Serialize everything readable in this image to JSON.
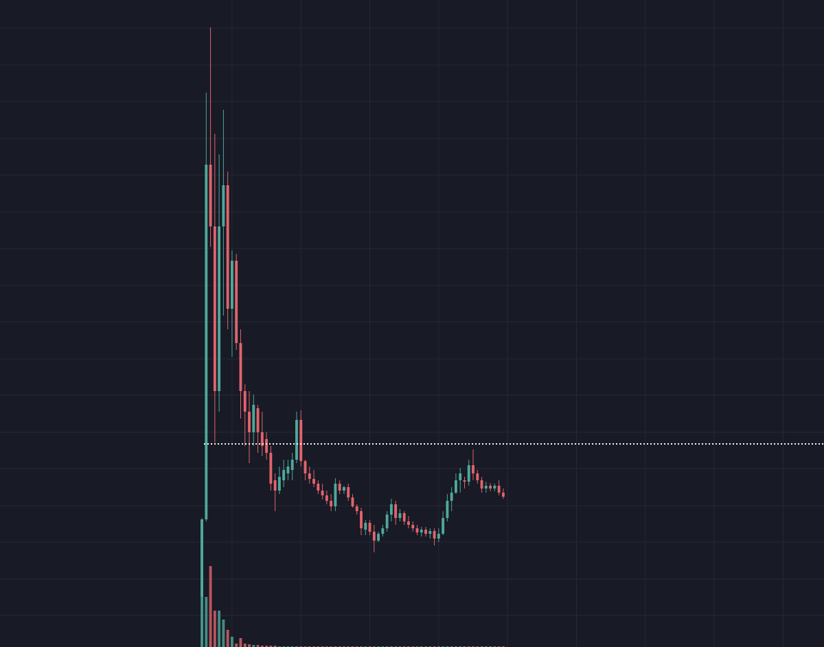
{
  "chart_data": {
    "type": "candlestick",
    "up_color": "#4fa89b",
    "down_color": "#e0646c",
    "grid_color": "#262935",
    "grid": true,
    "xlim": [
      -53.9,
      137.5
    ],
    "xticks": [
      0,
      16,
      32,
      48,
      64,
      80,
      96,
      112,
      128
    ],
    "ylim": [
      0,
      943
    ],
    "yticks": [
      46,
      99,
      153,
      206,
      260,
      313,
      367,
      420,
      474,
      527,
      581,
      634,
      688,
      741,
      795,
      848,
      902
    ],
    "vlim": [
      0,
      943
    ],
    "price_line": 296,
    "price_line_color": "#ffffff",
    "x": [
      -7,
      -6,
      -5,
      -4,
      -3,
      -2,
      -1,
      0,
      1,
      2,
      3,
      4,
      5,
      6,
      7,
      8,
      9,
      10,
      11,
      12,
      13,
      14,
      15,
      16,
      17,
      18,
      19,
      20,
      21,
      22,
      23,
      24,
      25,
      26,
      27,
      28,
      29,
      30,
      31,
      32,
      33,
      34,
      35,
      36,
      37,
      38,
      39,
      40,
      41,
      42,
      43,
      44,
      45,
      46,
      47,
      48,
      49,
      50,
      51,
      52,
      53,
      54,
      55,
      56,
      57,
      58,
      59,
      60,
      61,
      62,
      63
    ],
    "open": [
      73,
      186,
      703,
      613,
      373,
      613,
      673,
      493,
      563,
      443,
      373,
      343,
      313,
      348,
      313,
      303,
      283,
      243,
      228,
      243,
      253,
      258,
      273,
      331,
      271,
      253,
      245,
      238,
      228,
      221,
      213,
      205,
      238,
      228,
      233,
      218,
      205,
      198,
      171,
      181,
      168,
      155,
      165,
      173,
      193,
      208,
      188,
      195,
      183,
      178,
      173,
      167,
      171,
      165,
      169,
      158,
      165,
      188,
      213,
      225,
      243,
      243,
      241,
      265,
      253,
      243,
      231,
      235,
      231,
      235,
      225
    ],
    "high": [
      188,
      808,
      903,
      748,
      718,
      783,
      693,
      578,
      573,
      463,
      383,
      373,
      368,
      353,
      343,
      313,
      293,
      253,
      263,
      273,
      273,
      283,
      343,
      345,
      273,
      263,
      258,
      243,
      238,
      228,
      223,
      246,
      243,
      235,
      238,
      223,
      208,
      203,
      185,
      185,
      178,
      168,
      178,
      198,
      216,
      213,
      201,
      198,
      191,
      183,
      178,
      175,
      175,
      173,
      173,
      173,
      198,
      223,
      233,
      253,
      261,
      248,
      273,
      288,
      258,
      248,
      241,
      239,
      238,
      243,
      231
    ],
    "low": [
      3,
      183,
      583,
      298,
      343,
      483,
      463,
      423,
      433,
      333,
      293,
      268,
      293,
      283,
      278,
      273,
      228,
      198,
      223,
      233,
      243,
      243,
      268,
      263,
      243,
      238,
      233,
      223,
      215,
      208,
      198,
      198,
      223,
      223,
      213,
      203,
      193,
      163,
      163,
      163,
      138,
      153,
      161,
      168,
      183,
      178,
      183,
      178,
      173,
      168,
      163,
      161,
      161,
      158,
      148,
      153,
      163,
      183,
      198,
      223,
      225,
      231,
      235,
      243,
      238,
      225,
      225,
      227,
      227,
      221,
      216
    ],
    "close": [
      186,
      703,
      613,
      373,
      613,
      673,
      493,
      563,
      443,
      373,
      343,
      313,
      353,
      313,
      293,
      283,
      238,
      228,
      248,
      258,
      263,
      273,
      331,
      271,
      253,
      245,
      238,
      228,
      221,
      213,
      205,
      238,
      228,
      233,
      218,
      205,
      198,
      173,
      181,
      168,
      155,
      165,
      173,
      193,
      208,
      188,
      195,
      183,
      178,
      173,
      167,
      171,
      165,
      169,
      158,
      165,
      188,
      213,
      225,
      243,
      253,
      241,
      265,
      253,
      243,
      231,
      235,
      231,
      235,
      225,
      219
    ],
    "volume": [
      186,
      73,
      118,
      53,
      53,
      40,
      25,
      15,
      5,
      13,
      5,
      4,
      3,
      3,
      2,
      2,
      2,
      2,
      1,
      1,
      1,
      1,
      1,
      1,
      1,
      1,
      1,
      1,
      1,
      1,
      1,
      1,
      1,
      1,
      1,
      1,
      1,
      1,
      1,
      1,
      1,
      1,
      1,
      1,
      1,
      1,
      1,
      1,
      1,
      1,
      1,
      1,
      1,
      1,
      1,
      1,
      1,
      1,
      1,
      1,
      1,
      1,
      1,
      1,
      1,
      1,
      1,
      1,
      1,
      1,
      1
    ]
  }
}
